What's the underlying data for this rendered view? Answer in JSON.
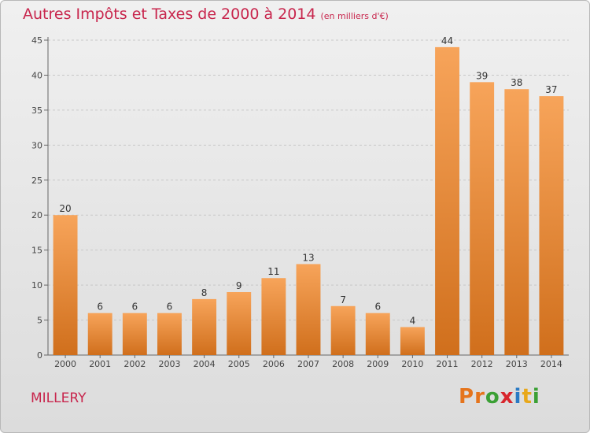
{
  "header": {
    "title": "Autres Impôts et Taxes de 2000 à 2014",
    "unit": "(en milliers d'€)"
  },
  "footer": {
    "commune": "MILLERY",
    "logo_letters": [
      "P",
      "r",
      "o",
      "x",
      "i",
      "t",
      "i"
    ],
    "logo_colors": [
      "#e5741c",
      "#e5741c",
      "#3ba035",
      "#d8262d",
      "#2a7ac4",
      "#e8a81a",
      "#3ba035"
    ]
  },
  "colors": {
    "title": "#c8264d",
    "bar_light": "#f7a45a",
    "bar_dark": "#d06f1c",
    "grid": "#c8c8c8"
  },
  "chart_data": {
    "type": "bar",
    "title": "Autres Impôts et Taxes de 2000 à 2014",
    "subtitle": "(en milliers d'€)",
    "categories": [
      "2000",
      "2001",
      "2002",
      "2003",
      "2004",
      "2005",
      "2006",
      "2007",
      "2008",
      "2009",
      "2010",
      "2011",
      "2012",
      "2013",
      "2014"
    ],
    "values": [
      20,
      6,
      6,
      6,
      8,
      9,
      11,
      13,
      7,
      6,
      4,
      44,
      39,
      38,
      37
    ],
    "ylim": [
      0,
      45
    ],
    "yticks": [
      0,
      5,
      10,
      15,
      20,
      25,
      30,
      35,
      40,
      45
    ],
    "grid": true,
    "xlabel": "",
    "ylabel": ""
  }
}
